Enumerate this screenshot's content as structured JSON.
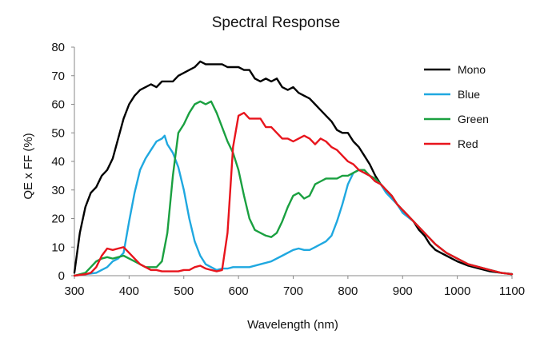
{
  "chart_data": {
    "type": "line",
    "title": "Spectral Response",
    "xlabel": "Wavelength (nm)",
    "ylabel": "QE x FF (%)",
    "xlim": [
      300,
      1100
    ],
    "ylim": [
      0,
      80
    ],
    "xticks": [
      300,
      400,
      500,
      600,
      700,
      800,
      900,
      1000,
      1100
    ],
    "yticks": [
      0,
      10,
      20,
      30,
      40,
      50,
      60,
      70,
      80
    ],
    "grid": false,
    "legend": "top-right",
    "series": [
      {
        "name": "Mono",
        "color": "#000000",
        "points": [
          [
            300,
            1
          ],
          [
            310,
            15
          ],
          [
            320,
            24
          ],
          [
            330,
            29
          ],
          [
            340,
            31
          ],
          [
            350,
            35
          ],
          [
            360,
            37
          ],
          [
            370,
            41
          ],
          [
            380,
            48
          ],
          [
            390,
            55
          ],
          [
            400,
            60
          ],
          [
            410,
            63
          ],
          [
            420,
            65
          ],
          [
            430,
            66
          ],
          [
            440,
            67
          ],
          [
            450,
            66
          ],
          [
            460,
            68
          ],
          [
            470,
            68
          ],
          [
            480,
            68
          ],
          [
            490,
            70
          ],
          [
            500,
            71
          ],
          [
            510,
            72
          ],
          [
            520,
            73
          ],
          [
            530,
            75
          ],
          [
            540,
            74
          ],
          [
            550,
            74
          ],
          [
            560,
            74
          ],
          [
            570,
            74
          ],
          [
            580,
            73
          ],
          [
            590,
            73
          ],
          [
            600,
            73
          ],
          [
            610,
            72
          ],
          [
            620,
            72
          ],
          [
            630,
            69
          ],
          [
            640,
            68
          ],
          [
            650,
            69
          ],
          [
            660,
            68
          ],
          [
            670,
            69
          ],
          [
            680,
            66
          ],
          [
            690,
            65
          ],
          [
            700,
            66
          ],
          [
            710,
            64
          ],
          [
            720,
            63
          ],
          [
            730,
            62
          ],
          [
            740,
            60
          ],
          [
            750,
            58
          ],
          [
            760,
            56
          ],
          [
            770,
            54
          ],
          [
            780,
            51
          ],
          [
            790,
            50
          ],
          [
            800,
            50
          ],
          [
            810,
            47
          ],
          [
            820,
            45
          ],
          [
            830,
            42
          ],
          [
            840,
            39
          ],
          [
            850,
            35
          ],
          [
            860,
            32
          ],
          [
            870,
            30
          ],
          [
            880,
            28
          ],
          [
            890,
            25
          ],
          [
            900,
            23
          ],
          [
            910,
            21
          ],
          [
            920,
            19
          ],
          [
            930,
            16
          ],
          [
            940,
            14
          ],
          [
            950,
            11
          ],
          [
            960,
            9
          ],
          [
            970,
            8
          ],
          [
            980,
            7
          ],
          [
            990,
            6
          ],
          [
            1000,
            5
          ],
          [
            1020,
            3.5
          ],
          [
            1040,
            2.5
          ],
          [
            1060,
            1.5
          ],
          [
            1080,
            1
          ],
          [
            1100,
            0.6
          ]
        ]
      },
      {
        "name": "Blue",
        "color": "#1FA8E0",
        "points": [
          [
            300,
            0
          ],
          [
            340,
            1
          ],
          [
            360,
            3
          ],
          [
            370,
            5
          ],
          [
            380,
            6
          ],
          [
            390,
            8
          ],
          [
            400,
            19
          ],
          [
            410,
            29
          ],
          [
            420,
            37
          ],
          [
            430,
            41
          ],
          [
            440,
            44
          ],
          [
            450,
            47
          ],
          [
            460,
            48
          ],
          [
            465,
            49
          ],
          [
            470,
            46
          ],
          [
            480,
            43
          ],
          [
            490,
            38
          ],
          [
            500,
            30
          ],
          [
            510,
            20
          ],
          [
            520,
            12
          ],
          [
            530,
            7
          ],
          [
            540,
            4
          ],
          [
            550,
            3
          ],
          [
            560,
            2
          ],
          [
            570,
            2.5
          ],
          [
            580,
            2.5
          ],
          [
            590,
            3
          ],
          [
            600,
            3
          ],
          [
            610,
            3
          ],
          [
            620,
            3
          ],
          [
            640,
            4
          ],
          [
            660,
            5
          ],
          [
            680,
            7
          ],
          [
            700,
            9
          ],
          [
            710,
            9.5
          ],
          [
            720,
            9
          ],
          [
            730,
            9
          ],
          [
            740,
            10
          ],
          [
            750,
            11
          ],
          [
            760,
            12
          ],
          [
            770,
            14
          ],
          [
            780,
            19
          ],
          [
            790,
            25
          ],
          [
            800,
            32
          ],
          [
            810,
            36
          ],
          [
            820,
            37
          ],
          [
            830,
            36
          ],
          [
            840,
            35
          ],
          [
            850,
            33
          ],
          [
            860,
            32
          ],
          [
            870,
            29
          ],
          [
            880,
            27
          ],
          [
            890,
            25
          ],
          [
            900,
            22
          ],
          [
            920,
            19
          ],
          [
            940,
            15
          ],
          [
            960,
            11
          ],
          [
            980,
            8
          ],
          [
            1000,
            6
          ],
          [
            1020,
            4
          ],
          [
            1040,
            3
          ],
          [
            1060,
            2
          ],
          [
            1080,
            1
          ],
          [
            1100,
            0.5
          ]
        ]
      },
      {
        "name": "Green",
        "color": "#1AA040",
        "points": [
          [
            300,
            0
          ],
          [
            320,
            1
          ],
          [
            330,
            3
          ],
          [
            340,
            5
          ],
          [
            350,
            6
          ],
          [
            360,
            6.5
          ],
          [
            370,
            6
          ],
          [
            380,
            6.5
          ],
          [
            390,
            7
          ],
          [
            400,
            6
          ],
          [
            410,
            5
          ],
          [
            420,
            4
          ],
          [
            430,
            3
          ],
          [
            440,
            3
          ],
          [
            450,
            3
          ],
          [
            460,
            5
          ],
          [
            470,
            15
          ],
          [
            480,
            35
          ],
          [
            490,
            50
          ],
          [
            500,
            53
          ],
          [
            510,
            57
          ],
          [
            520,
            60
          ],
          [
            530,
            61
          ],
          [
            540,
            60
          ],
          [
            550,
            61
          ],
          [
            560,
            57
          ],
          [
            570,
            52
          ],
          [
            580,
            47
          ],
          [
            590,
            43
          ],
          [
            600,
            37
          ],
          [
            610,
            28
          ],
          [
            620,
            20
          ],
          [
            630,
            16
          ],
          [
            640,
            15
          ],
          [
            650,
            14
          ],
          [
            660,
            13.5
          ],
          [
            670,
            15
          ],
          [
            680,
            19
          ],
          [
            690,
            24
          ],
          [
            700,
            28
          ],
          [
            710,
            29
          ],
          [
            720,
            27
          ],
          [
            730,
            28
          ],
          [
            740,
            32
          ],
          [
            750,
            33
          ],
          [
            760,
            34
          ],
          [
            770,
            34
          ],
          [
            780,
            34
          ],
          [
            790,
            35
          ],
          [
            800,
            35
          ],
          [
            810,
            36
          ],
          [
            820,
            37
          ],
          [
            830,
            37
          ],
          [
            840,
            35
          ],
          [
            850,
            34
          ],
          [
            860,
            32
          ],
          [
            870,
            30
          ],
          [
            880,
            28
          ],
          [
            890,
            25
          ],
          [
            900,
            23
          ],
          [
            920,
            19
          ],
          [
            940,
            15
          ],
          [
            960,
            11
          ],
          [
            980,
            8
          ],
          [
            1000,
            6
          ],
          [
            1020,
            4
          ],
          [
            1040,
            3
          ],
          [
            1060,
            2
          ],
          [
            1080,
            1
          ],
          [
            1100,
            0.5
          ]
        ]
      },
      {
        "name": "Red",
        "color": "#E8141C",
        "points": [
          [
            300,
            0
          ],
          [
            320,
            0.5
          ],
          [
            330,
            1
          ],
          [
            340,
            3
          ],
          [
            350,
            7
          ],
          [
            360,
            9.5
          ],
          [
            370,
            9
          ],
          [
            380,
            9.5
          ],
          [
            390,
            10
          ],
          [
            400,
            8
          ],
          [
            410,
            6
          ],
          [
            420,
            4
          ],
          [
            430,
            3
          ],
          [
            440,
            2
          ],
          [
            450,
            2
          ],
          [
            460,
            1.5
          ],
          [
            470,
            1.5
          ],
          [
            480,
            1.5
          ],
          [
            490,
            1.5
          ],
          [
            500,
            2
          ],
          [
            510,
            2
          ],
          [
            520,
            3
          ],
          [
            530,
            3.5
          ],
          [
            540,
            2.5
          ],
          [
            550,
            2
          ],
          [
            560,
            1.5
          ],
          [
            570,
            2
          ],
          [
            580,
            15
          ],
          [
            590,
            45
          ],
          [
            600,
            56
          ],
          [
            610,
            57
          ],
          [
            620,
            55
          ],
          [
            630,
            55
          ],
          [
            640,
            55
          ],
          [
            650,
            52
          ],
          [
            660,
            52
          ],
          [
            670,
            50
          ],
          [
            680,
            48
          ],
          [
            690,
            48
          ],
          [
            700,
            47
          ],
          [
            710,
            48
          ],
          [
            720,
            49
          ],
          [
            730,
            48
          ],
          [
            740,
            46
          ],
          [
            750,
            48
          ],
          [
            760,
            47
          ],
          [
            770,
            45
          ],
          [
            780,
            44
          ],
          [
            790,
            42
          ],
          [
            800,
            40
          ],
          [
            810,
            39
          ],
          [
            820,
            37
          ],
          [
            830,
            36
          ],
          [
            840,
            35
          ],
          [
            850,
            33
          ],
          [
            860,
            32
          ],
          [
            870,
            30
          ],
          [
            880,
            28
          ],
          [
            890,
            25
          ],
          [
            900,
            23
          ],
          [
            920,
            19
          ],
          [
            940,
            15
          ],
          [
            960,
            11
          ],
          [
            980,
            8
          ],
          [
            1000,
            6
          ],
          [
            1020,
            4
          ],
          [
            1040,
            3
          ],
          [
            1060,
            2
          ],
          [
            1080,
            1
          ],
          [
            1100,
            0.5
          ]
        ]
      }
    ]
  }
}
